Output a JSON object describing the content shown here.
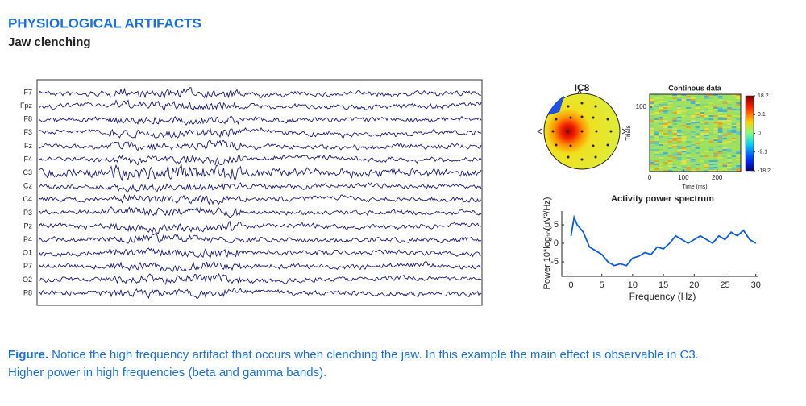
{
  "header": {
    "title": "PHYSIOLOGICAL ARTIFACTS",
    "subtitle": "Jaw clenching"
  },
  "eeg": {
    "channels": [
      "F7",
      "Fpz",
      "F8",
      "F3",
      "Fz",
      "F4",
      "C3",
      "Cz",
      "C4",
      "P3",
      "Pz",
      "P4",
      "O1",
      "P7",
      "O2",
      "P8"
    ]
  },
  "chart_data": [
    {
      "type": "topoplot",
      "title": "IC8"
    },
    {
      "type": "heatmap",
      "title": "Continous data",
      "ylabel": "Trials",
      "xlabel": "Time (ms)",
      "xlim": [
        0,
        270
      ],
      "xticks": [
        0,
        100,
        200
      ],
      "ylim": [
        0,
        120
      ],
      "yticks": [
        100
      ],
      "clim": [
        -18.2,
        18.2
      ],
      "cticks": [
        18.2,
        9.1,
        0,
        -9.1,
        -18.2
      ]
    },
    {
      "type": "line",
      "title": "Activity power spectrum",
      "xlabel": "Frequency (Hz)",
      "ylabel": "Power 10*log₁₀(μV²/Hz)",
      "x": [
        0,
        0.5,
        1,
        2,
        3,
        4,
        5,
        6,
        7,
        8,
        9,
        10,
        11,
        12,
        13,
        14,
        15,
        16,
        17,
        18,
        19,
        20,
        21,
        22,
        23,
        24,
        25,
        26,
        27,
        28,
        29,
        30
      ],
      "values": [
        2,
        7,
        5,
        3,
        -1,
        -2,
        -3,
        -5,
        -6,
        -5.5,
        -6,
        -4,
        -3.5,
        -2.5,
        -3,
        -1,
        -1.5,
        0,
        2,
        1,
        0,
        1,
        2,
        1,
        0,
        2,
        1,
        3,
        2,
        3.5,
        1,
        0
      ],
      "color": "#0a5ce0",
      "xlim": [
        -1.5,
        30.3
      ],
      "xticks": [
        0,
        5,
        10,
        15,
        20,
        25,
        30
      ],
      "ylim": [
        -8.9,
        8.7
      ],
      "yticks": [
        -5,
        0,
        5
      ]
    }
  ],
  "caption": {
    "label": "Figure.",
    "line1": " Notice the high frequency artifact that occurs when clenching the jaw. In this example the main effect is observable in C3.",
    "line2": "Higher power in high frequencies (beta and gamma bands)."
  }
}
